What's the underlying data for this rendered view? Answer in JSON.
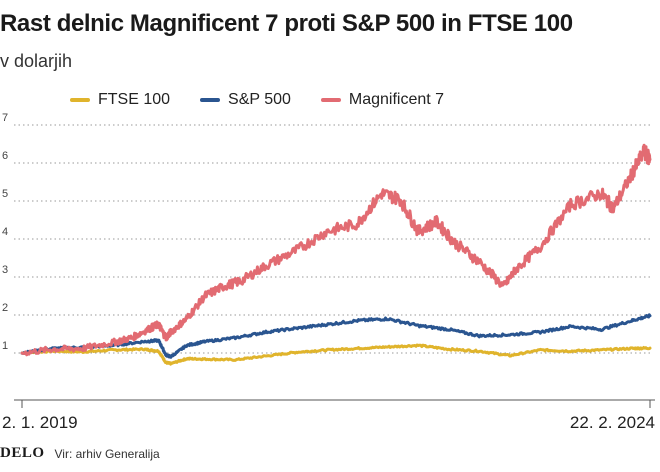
{
  "colors": {
    "ftse": "#e0b42c",
    "sp500": "#2a5590",
    "mag7": "#e26b72",
    "grid": "#999999",
    "axis": "#555555"
  },
  "footer": {
    "logo": "DELO",
    "source": "Vir: arhiv Generalija"
  },
  "chart_data": {
    "type": "line",
    "title": "Rast delnic Magnificent 7 proti S&P 500 in FTSE 100",
    "subtitle": "v dolarjih",
    "ylim": [
      0,
      7
    ],
    "yticks": [
      1,
      2,
      3,
      4,
      5,
      6,
      7
    ],
    "ytick_labels": [
      "1",
      "2",
      "3",
      "4",
      "5",
      "6",
      "7"
    ],
    "grid": "horizontal dotted",
    "x_range": [
      2019.0,
      2024.15
    ],
    "x_tick_labels": [
      "2. 1. 2019",
      "22. 2. 2024"
    ],
    "legend_position": "top",
    "series": [
      {
        "name": "FTSE 100",
        "color_key": "ftse",
        "x": [
          2019.0,
          2019.25,
          2019.5,
          2019.75,
          2020.0,
          2020.12,
          2020.18,
          2020.22,
          2020.35,
          2020.5,
          2020.75,
          2021.0,
          2021.25,
          2021.5,
          2021.75,
          2022.0,
          2022.25,
          2022.5,
          2022.75,
          2023.0,
          2023.25,
          2023.5,
          2023.75,
          2024.0,
          2024.15
        ],
        "values": [
          1.0,
          1.05,
          1.03,
          1.08,
          1.1,
          1.05,
          0.75,
          0.72,
          0.85,
          0.84,
          0.82,
          0.92,
          1.02,
          1.08,
          1.12,
          1.16,
          1.2,
          1.1,
          1.05,
          0.93,
          1.08,
          1.05,
          1.08,
          1.12,
          1.13
        ]
      },
      {
        "name": "S&P 500",
        "color_key": "sp500",
        "x": [
          2019.0,
          2019.25,
          2019.5,
          2019.75,
          2020.0,
          2020.12,
          2020.18,
          2020.22,
          2020.35,
          2020.5,
          2020.75,
          2021.0,
          2021.25,
          2021.5,
          2021.75,
          2022.0,
          2022.25,
          2022.5,
          2022.75,
          2023.0,
          2023.25,
          2023.5,
          2023.75,
          2024.0,
          2024.15
        ],
        "values": [
          1.0,
          1.12,
          1.15,
          1.2,
          1.3,
          1.33,
          0.95,
          0.9,
          1.2,
          1.3,
          1.4,
          1.55,
          1.65,
          1.75,
          1.85,
          1.9,
          1.72,
          1.62,
          1.45,
          1.48,
          1.55,
          1.7,
          1.62,
          1.85,
          1.98
        ]
      },
      {
        "name": "Magnificent 7",
        "color_key": "mag7",
        "x": [
          2019.0,
          2019.25,
          2019.5,
          2019.75,
          2019.9,
          2020.05,
          2020.12,
          2020.18,
          2020.22,
          2020.35,
          2020.5,
          2020.65,
          2020.8,
          2021.0,
          2021.25,
          2021.5,
          2021.75,
          2021.95,
          2022.1,
          2022.25,
          2022.4,
          2022.55,
          2022.75,
          2022.95,
          2023.05,
          2023.25,
          2023.5,
          2023.75,
          2023.85,
          2024.0,
          2024.1,
          2024.15
        ],
        "values": [
          1.0,
          1.1,
          1.12,
          1.28,
          1.4,
          1.65,
          1.75,
          1.4,
          1.55,
          1.9,
          2.5,
          2.75,
          2.9,
          3.3,
          3.7,
          4.2,
          4.4,
          5.2,
          5.05,
          4.2,
          4.45,
          3.9,
          3.4,
          2.75,
          3.2,
          3.8,
          4.9,
          5.2,
          4.8,
          5.7,
          6.3,
          6.1
        ]
      }
    ]
  }
}
